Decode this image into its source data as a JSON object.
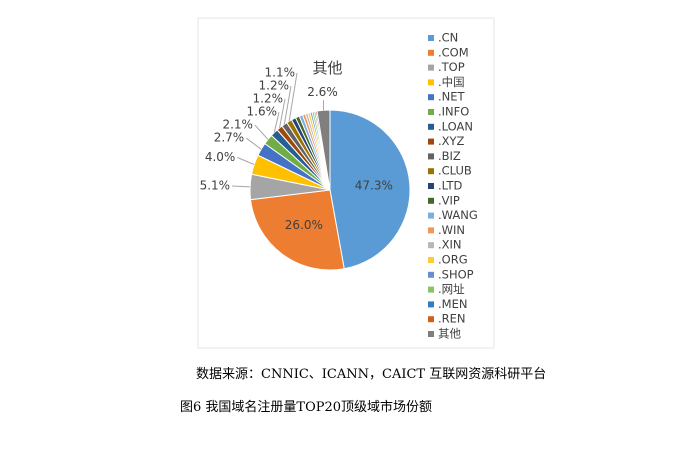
{
  "chart_data": {
    "type": "pie",
    "categories": [
      ".CN",
      ".COM",
      ".TOP",
      ".中国",
      ".NET",
      ".INFO",
      ".LOAN",
      ".XYZ",
      ".BIZ",
      ".CLUB",
      ".LTD",
      ".VIP",
      ".WANG",
      ".WIN",
      ".XIN",
      ".ORG",
      ".SHOP",
      ".网址",
      ".MEN",
      ".REN",
      "其他"
    ],
    "values": [
      47.3,
      26.0,
      5.1,
      4.0,
      2.7,
      2.1,
      1.6,
      1.2,
      1.2,
      1.1,
      0.9,
      0.8,
      0.7,
      0.6,
      0.5,
      0.5,
      0.4,
      0.4,
      0.3,
      0.3,
      2.6
    ],
    "value_labels": [
      "47.3%",
      "26.0%",
      "5.1%",
      "4.0%",
      "2.7%",
      "2.1%",
      "1.6%",
      "1.2%",
      "1.2%",
      "1.1%",
      null,
      null,
      null,
      null,
      null,
      null,
      null,
      null,
      null,
      null,
      "2.6%"
    ],
    "colors": [
      "#5b9bd5",
      "#ed7d31",
      "#a5a5a5",
      "#ffc000",
      "#4472c4",
      "#70ad47",
      "#255e91",
      "#9e480e",
      "#636363",
      "#997300",
      "#264478",
      "#43682b",
      "#7cafdd",
      "#f1975a",
      "#b7b7b7",
      "#ffcd33",
      "#698ed0",
      "#8cc168",
      "#327dc2",
      "#d26012",
      "#7f7f7f"
    ],
    "legend": "right"
  },
  "source": "数据来源：CNNIC、ICANN，CAICT 互联网资源科研平台",
  "caption": "图6 我国域名注册量TOP20顶级域市场份额"
}
